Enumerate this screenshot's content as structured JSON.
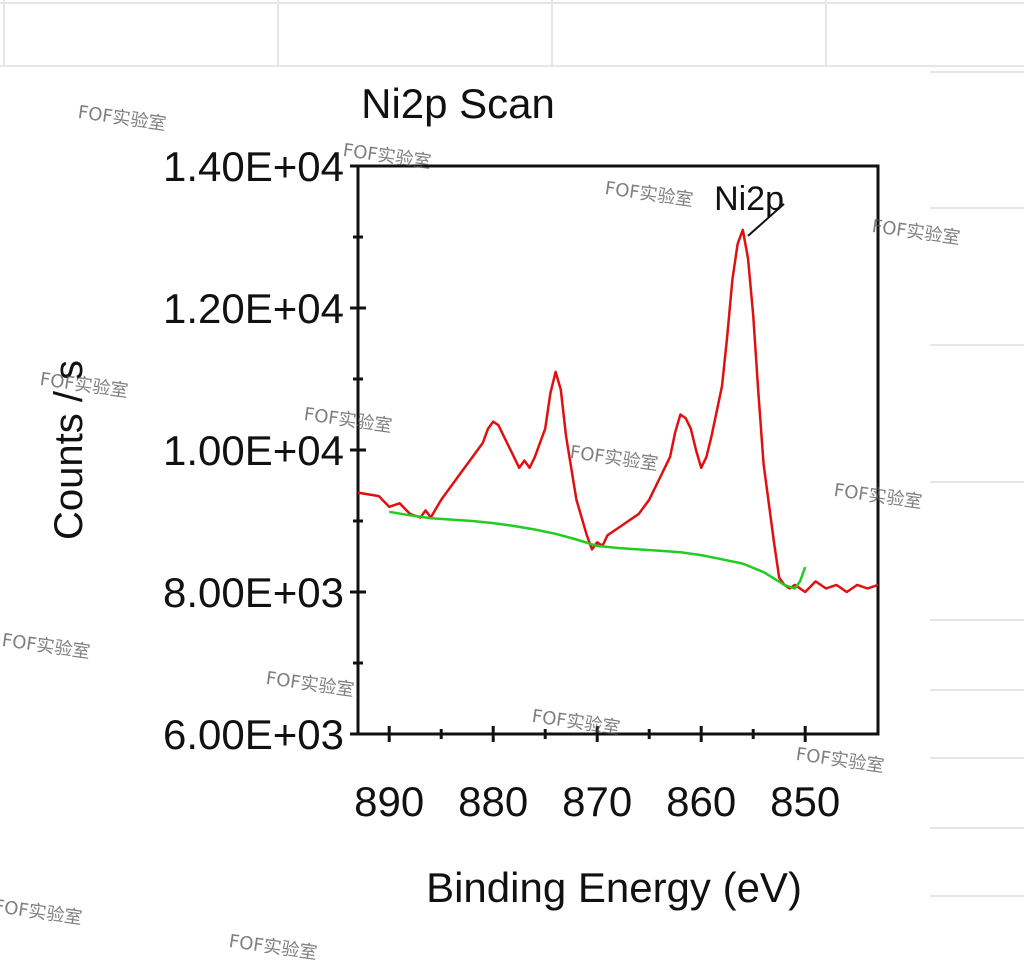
{
  "chart_data": {
    "type": "line",
    "title": "Ni2p Scan",
    "xlabel": "Binding Energy (eV)",
    "ylabel": "Counts / s",
    "xlim": [
      893,
      843
    ],
    "ylim": [
      6000,
      14000
    ],
    "x_reversed": true,
    "x_ticks": [
      890,
      880,
      870,
      860,
      850
    ],
    "x_tick_labels": [
      "890",
      "880",
      "870",
      "860",
      "850"
    ],
    "y_ticks": [
      6000,
      8000,
      10000,
      12000,
      14000
    ],
    "y_tick_labels": [
      "6.00E+03",
      "8.00E+03",
      "1.00E+04",
      "1.20E+04",
      "1.40E+04"
    ],
    "grid": false,
    "series": [
      {
        "color": "#e01010",
        "x": [
          893,
          891,
          890,
          889,
          888,
          887,
          886.5,
          886,
          885,
          884,
          883,
          882,
          881,
          880.5,
          880,
          879.5,
          879,
          878,
          877.5,
          877,
          876.5,
          876,
          875,
          874.5,
          874,
          873.5,
          873,
          872,
          871,
          870.5,
          870,
          869.5,
          869,
          868,
          867,
          866,
          865,
          864,
          863,
          862.5,
          862,
          861.5,
          861,
          860.5,
          860,
          859.5,
          859,
          858,
          857.5,
          857,
          856.5,
          856,
          855.5,
          855,
          854.5,
          854,
          853,
          852.5,
          852,
          851.5,
          851,
          850,
          849,
          848,
          847,
          846,
          845,
          844,
          843
        ],
        "y": [
          9400,
          9350,
          9200,
          9250,
          9100,
          9050,
          9150,
          9050,
          9300,
          9500,
          9700,
          9900,
          10100,
          10300,
          10400,
          10350,
          10200,
          9900,
          9750,
          9850,
          9750,
          9900,
          10300,
          10800,
          11100,
          10850,
          10200,
          9300,
          8800,
          8600,
          8700,
          8650,
          8800,
          8900,
          9000,
          9100,
          9300,
          9600,
          9900,
          10250,
          10500,
          10450,
          10300,
          10000,
          9750,
          9900,
          10200,
          10900,
          11600,
          12400,
          12900,
          13100,
          12700,
          11900,
          10800,
          9800,
          8700,
          8200,
          8100,
          8050,
          8100,
          8000,
          8150,
          8050,
          8100,
          8000,
          8100,
          8050,
          8100
        ]
      },
      {
        "color": "#22cc22",
        "x": [
          890,
          888,
          886,
          884,
          882,
          880,
          878,
          876,
          874,
          872,
          870,
          868,
          866,
          864,
          862,
          860,
          858,
          856,
          854,
          852,
          851,
          850.5,
          850
        ],
        "y": [
          9130,
          9080,
          9040,
          9020,
          9000,
          8970,
          8930,
          8880,
          8820,
          8740,
          8650,
          8620,
          8600,
          8580,
          8560,
          8520,
          8460,
          8400,
          8280,
          8100,
          8050,
          8150,
          8350
        ]
      }
    ],
    "annotations": [
      {
        "text": "Ni2p",
        "x": 855.5,
        "y": 13100
      }
    ],
    "watermark_text": "FOF实验室"
  }
}
